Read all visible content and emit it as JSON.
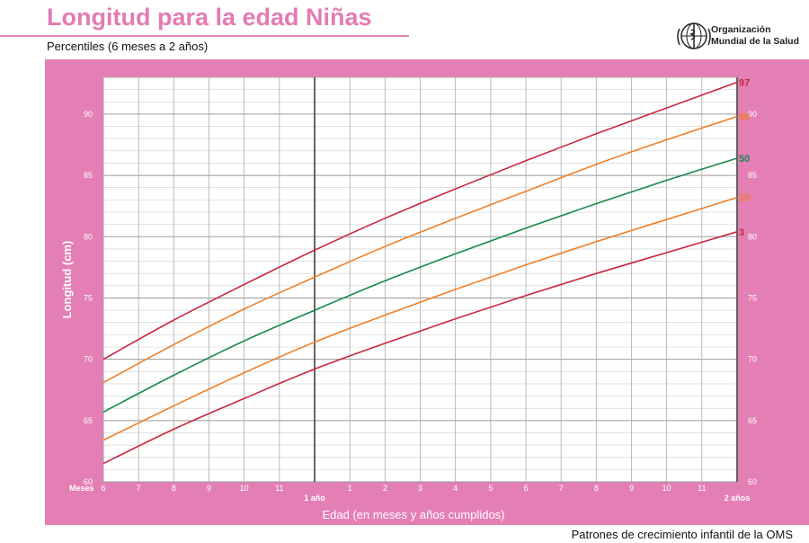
{
  "header": {
    "title": "Longitud para la edad Niñas",
    "subtitle": "Percentiles (6 meses a 2 años)",
    "org_line1": "Organización",
    "org_line2": "Mundial de la Salud",
    "logo_icon": "who-emblem-icon"
  },
  "footer": {
    "text": "Patrones de crecimiento infantil de la OMS"
  },
  "colors": {
    "panel_bg": "#e47fb5",
    "title": "#e37bb3",
    "p3": "#c8283f",
    "p15": "#ee7f28",
    "p50": "#17894a",
    "p85": "#ee7f28",
    "p97": "#c8283f"
  },
  "chart_data": {
    "type": "line",
    "title": "Longitud para la edad Niñas",
    "subtitle": "Percentiles (6 meses a 2 años)",
    "xlabel": "Edad (en meses y años cumplidos)",
    "ylabel": "Longitud (cm)",
    "x_unit_label": "Meses",
    "xlim": [
      6,
      24
    ],
    "ylim": [
      60,
      93
    ],
    "yticks": [
      60,
      65,
      70,
      75,
      80,
      85,
      90
    ],
    "xtick_labels": [
      "6",
      "7",
      "8",
      "9",
      "10",
      "11",
      "1 año",
      "1",
      "2",
      "3",
      "4",
      "5",
      "6",
      "7",
      "8",
      "9",
      "10",
      "11",
      "2 años"
    ],
    "x": [
      6,
      8,
      10,
      12,
      14,
      16,
      18,
      20,
      22,
      24
    ],
    "series": [
      {
        "name": "3",
        "values": [
          61.5,
          64.3,
          66.8,
          69.2,
          71.3,
          73.3,
          75.2,
          77.0,
          78.7,
          80.4
        ]
      },
      {
        "name": "15",
        "values": [
          63.4,
          66.2,
          68.9,
          71.4,
          73.6,
          75.7,
          77.7,
          79.6,
          81.4,
          83.2
        ]
      },
      {
        "name": "50",
        "values": [
          65.7,
          68.7,
          71.5,
          74.0,
          76.4,
          78.6,
          80.7,
          82.7,
          84.6,
          86.4
        ]
      },
      {
        "name": "85",
        "values": [
          68.1,
          71.2,
          74.1,
          76.7,
          79.2,
          81.5,
          83.7,
          85.9,
          87.9,
          89.8
        ]
      },
      {
        "name": "97",
        "values": [
          70.0,
          73.2,
          76.1,
          78.9,
          81.5,
          83.9,
          86.2,
          88.4,
          90.5,
          92.6
        ]
      }
    ],
    "grid": true,
    "legend": "line-end labels on right"
  }
}
